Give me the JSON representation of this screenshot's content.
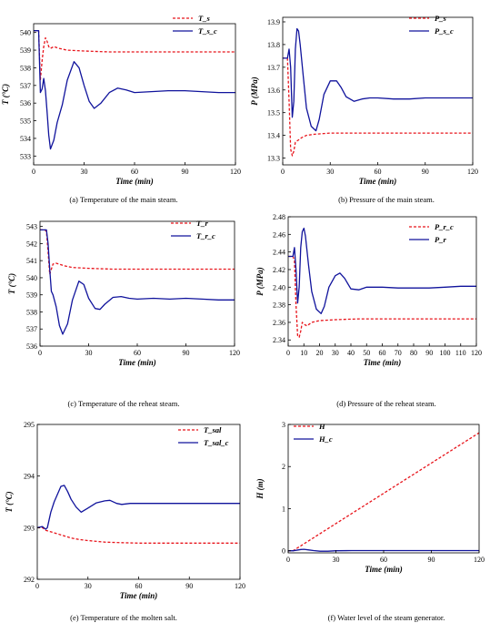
{
  "figure": {
    "panels": [
      {
        "id": "a",
        "caption": "(a) Temperature of the main steam.",
        "ylabel": "T (°C)",
        "xlabel": "Time (min)"
      },
      {
        "id": "b",
        "caption": "(b) Pressure of the main steam.",
        "ylabel": "P (MPa)",
        "xlabel": "Time (min)"
      },
      {
        "id": "c",
        "caption": "(c) Temperature of the reheat steam.",
        "ylabel": "T (°C)",
        "xlabel": "Time (min)"
      },
      {
        "id": "d",
        "caption": "(d) Pressure of the reheat steam.",
        "ylabel": "P (MPa)",
        "xlabel": "Time (min)"
      },
      {
        "id": "e",
        "caption": "(e) Temperature of the molten salt.",
        "ylabel": "T (°C)",
        "xlabel": "Time (min)"
      },
      {
        "id": "f",
        "caption": "(f) Water level of the steam generator.",
        "ylabel": "H (m)",
        "xlabel": "Time (min)"
      }
    ]
  },
  "chart_data": [
    {
      "type": "line",
      "panel": "a",
      "xlim": [
        0,
        120
      ],
      "ylim": [
        532.5,
        540.5
      ],
      "xticks": [
        0,
        30,
        60,
        90,
        120
      ],
      "yticks": [
        533,
        534,
        535,
        536,
        537,
        538,
        539,
        540
      ],
      "legend_position": "top-right",
      "series": [
        {
          "name": "T_s",
          "color": "#e8141b",
          "dash": "dashed",
          "x": [
            0,
            2,
            3,
            4,
            5,
            6,
            7,
            8,
            9,
            10,
            12,
            15,
            20,
            30,
            45,
            60,
            90,
            120
          ],
          "y": [
            540.1,
            540.1,
            540.1,
            537.3,
            538.4,
            539.2,
            539.7,
            539.5,
            539.2,
            539.1,
            539.2,
            539.1,
            539.0,
            538.95,
            538.9,
            538.9,
            538.9,
            538.9
          ]
        },
        {
          "name": "T_s_c",
          "color": "#10139c",
          "dash": "solid",
          "x": [
            0,
            2,
            3,
            4,
            5,
            6,
            7,
            8,
            9,
            10,
            12,
            14,
            17,
            20,
            24,
            27,
            30,
            33,
            36,
            40,
            45,
            50,
            55,
            60,
            70,
            80,
            90,
            100,
            110,
            120
          ],
          "y": [
            540.1,
            540.1,
            540.1,
            536.6,
            536.8,
            537.4,
            536.7,
            535.5,
            534.2,
            533.4,
            533.9,
            534.9,
            535.9,
            537.3,
            538.35,
            538.0,
            537.0,
            536.1,
            535.7,
            536.0,
            536.6,
            536.85,
            536.75,
            536.6,
            536.65,
            536.7,
            536.7,
            536.65,
            536.6,
            536.6
          ]
        }
      ]
    },
    {
      "type": "line",
      "panel": "b",
      "xlim": [
        0,
        120
      ],
      "ylim": [
        13.27,
        13.92
      ],
      "xticks": [
        0,
        30,
        60,
        90,
        120
      ],
      "yticks": [
        13.3,
        13.4,
        13.5,
        13.6,
        13.7,
        13.8,
        13.9
      ],
      "legend_position": "top-right",
      "series": [
        {
          "name": "P_s",
          "color": "#e8141b",
          "dash": "dashed",
          "x": [
            0,
            3,
            4,
            5,
            6,
            7,
            8,
            10,
            12,
            15,
            20,
            30,
            45,
            60,
            90,
            120
          ],
          "y": [
            13.74,
            13.74,
            13.55,
            13.34,
            13.31,
            13.33,
            13.37,
            13.38,
            13.39,
            13.4,
            13.405,
            13.41,
            13.41,
            13.41,
            13.41,
            13.41
          ],
          "note": ""
        },
        {
          "name": "P_s_c",
          "color": "#10139c",
          "dash": "solid",
          "x": [
            0,
            3,
            4,
            5,
            6,
            7,
            8,
            9,
            10,
            11,
            13,
            15,
            18,
            21,
            23,
            26,
            30,
            34,
            37,
            40,
            45,
            50,
            55,
            60,
            70,
            80,
            90,
            100,
            110,
            120
          ],
          "y": [
            13.74,
            13.74,
            13.78,
            13.7,
            13.48,
            13.55,
            13.78,
            13.87,
            13.86,
            13.8,
            13.66,
            13.52,
            13.44,
            13.42,
            13.47,
            13.58,
            13.64,
            13.64,
            13.61,
            13.57,
            13.55,
            13.56,
            13.565,
            13.565,
            13.56,
            13.56,
            13.565,
            13.565,
            13.565,
            13.565
          ]
        }
      ]
    },
    {
      "type": "line",
      "panel": "c",
      "xlim": [
        0,
        120
      ],
      "ylim": [
        536,
        543.3
      ],
      "xticks": [
        0,
        30,
        60,
        90,
        120
      ],
      "yticks": [
        536,
        537,
        538,
        539,
        540,
        541,
        542,
        543
      ],
      "legend_position": "top-right",
      "series": [
        {
          "name": "T_r",
          "color": "#e8141b",
          "dash": "dashed",
          "x": [
            0,
            3,
            4,
            5,
            6,
            7,
            8,
            10,
            15,
            20,
            30,
            45,
            60,
            90,
            120
          ],
          "y": [
            542.8,
            542.8,
            542.7,
            541.5,
            540.2,
            540.5,
            540.8,
            540.85,
            540.7,
            540.6,
            540.55,
            540.5,
            540.5,
            540.5,
            540.5
          ]
        },
        {
          "name": "T_r_c",
          "color": "#10139c",
          "dash": "solid",
          "x": [
            0,
            3,
            4,
            5,
            6,
            7,
            8,
            10,
            12,
            14,
            17,
            20,
            24,
            27,
            30,
            34,
            37,
            40,
            45,
            50,
            55,
            60,
            70,
            80,
            90,
            100,
            110,
            120
          ],
          "y": [
            542.8,
            542.8,
            542.8,
            542.0,
            540.5,
            539.2,
            539.0,
            538.3,
            537.2,
            536.7,
            537.3,
            538.7,
            539.8,
            539.6,
            538.8,
            538.2,
            538.15,
            538.45,
            538.85,
            538.9,
            538.8,
            538.75,
            538.8,
            538.75,
            538.8,
            538.75,
            538.7,
            538.7
          ]
        }
      ]
    },
    {
      "type": "line",
      "panel": "d",
      "xlim": [
        0,
        120
      ],
      "ylim": [
        2.333,
        2.48
      ],
      "xticks": [
        0,
        10,
        20,
        30,
        40,
        50,
        60,
        70,
        80,
        90,
        100,
        110,
        120
      ],
      "yticks": [
        2.34,
        2.36,
        2.38,
        2.4,
        2.42,
        2.44,
        2.46,
        2.48
      ],
      "legend_position": "top-right",
      "series": [
        {
          "name": "P_r_c",
          "color": "#e8141b",
          "dash": "dashed",
          "x": [
            0,
            3,
            4,
            5,
            6,
            7,
            8,
            9,
            10,
            12,
            15,
            20,
            30,
            45,
            60,
            90,
            120
          ],
          "y": [
            2.435,
            2.435,
            2.43,
            2.38,
            2.345,
            2.343,
            2.35,
            2.36,
            2.358,
            2.356,
            2.36,
            2.362,
            2.363,
            2.364,
            2.364,
            2.364,
            2.364
          ]
        },
        {
          "name": "P_r",
          "color": "#10139c",
          "dash": "solid",
          "x": [
            0,
            3,
            4,
            5,
            6,
            7,
            8,
            9,
            10,
            11,
            13,
            15,
            18,
            21,
            23,
            26,
            30,
            33,
            36,
            40,
            45,
            50,
            55,
            60,
            70,
            80,
            90,
            100,
            110,
            120
          ],
          "y": [
            2.435,
            2.435,
            2.445,
            2.42,
            2.382,
            2.4,
            2.445,
            2.463,
            2.467,
            2.458,
            2.425,
            2.395,
            2.375,
            2.37,
            2.378,
            2.4,
            2.413,
            2.416,
            2.41,
            2.398,
            2.397,
            2.4,
            2.4,
            2.4,
            2.399,
            2.399,
            2.399,
            2.4,
            2.401,
            2.401
          ]
        }
      ]
    },
    {
      "type": "line",
      "panel": "e",
      "xlim": [
        0,
        120
      ],
      "ylim": [
        292,
        295
      ],
      "xticks": [
        0,
        30,
        60,
        90,
        120
      ],
      "yticks": [
        292,
        293,
        294,
        295
      ],
      "legend_position": "top-right",
      "series": [
        {
          "name": "T_sal",
          "color": "#e8141b",
          "dash": "dashed",
          "x": [
            0,
            3,
            5,
            8,
            12,
            16,
            20,
            25,
            30,
            40,
            50,
            60,
            80,
            100,
            120
          ],
          "y": [
            293.0,
            293.0,
            292.95,
            292.92,
            292.88,
            292.84,
            292.8,
            292.77,
            292.75,
            292.72,
            292.71,
            292.7,
            292.7,
            292.7,
            292.7
          ]
        },
        {
          "name": "T_sal_c",
          "color": "#10139c",
          "dash": "solid",
          "x": [
            0,
            3,
            5,
            6,
            8,
            10,
            12,
            14,
            16,
            18,
            20,
            23,
            26,
            30,
            35,
            40,
            43,
            47,
            50,
            55,
            60,
            70,
            80,
            90,
            100,
            110,
            120
          ],
          "y": [
            293.0,
            293.02,
            292.97,
            293.0,
            293.3,
            293.5,
            293.65,
            293.8,
            293.82,
            293.7,
            293.55,
            293.4,
            293.3,
            293.38,
            293.48,
            293.52,
            293.53,
            293.47,
            293.45,
            293.47,
            293.47,
            293.47,
            293.47,
            293.47,
            293.47,
            293.47,
            293.47
          ]
        }
      ]
    },
    {
      "type": "line",
      "panel": "f",
      "xlim": [
        0,
        120
      ],
      "ylim": [
        -0.05,
        3
      ],
      "xticks": [
        0,
        30,
        60,
        90,
        120
      ],
      "yticks": [
        0,
        1,
        2,
        3
      ],
      "legend_position": "top-left",
      "series": [
        {
          "name": "H",
          "color": "#e8141b",
          "dash": "dashed",
          "x": [
            0,
            3,
            120
          ],
          "y": [
            0.0,
            0.0,
            2.8
          ]
        },
        {
          "name": "H_c",
          "color": "#10139c",
          "dash": "solid",
          "x": [
            0,
            3,
            5,
            8,
            10,
            13,
            16,
            20,
            25,
            30,
            40,
            60,
            90,
            120
          ],
          "y": [
            0.0,
            0.0,
            0.01,
            0.03,
            0.035,
            0.02,
            0.005,
            -0.01,
            -0.01,
            0.0,
            0.005,
            0.005,
            0.005,
            0.005
          ]
        }
      ]
    }
  ]
}
